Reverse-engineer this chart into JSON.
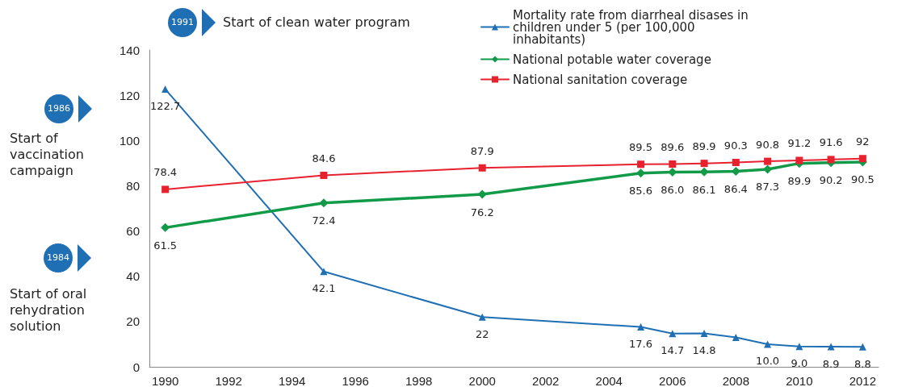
{
  "chart_data": {
    "type": "line",
    "x": [
      1990,
      1995,
      2000,
      2005,
      2006,
      2007,
      2008,
      2009,
      2010,
      2011,
      2012
    ],
    "series": [
      {
        "name": "Mortality rate from diarrheal disases in children under 5 (per 100,000 inhabitants)",
        "color": "#1f6fb5",
        "marker": "triangle",
        "values": [
          122.7,
          42.1,
          22,
          17.6,
          14.7,
          14.8,
          13,
          10.0,
          9.0,
          8.9,
          8.8
        ],
        "value_labels": [
          "122.7",
          "42.1",
          "22",
          "17.6",
          "14.7",
          "14.8",
          null,
          "10.0",
          "9.0",
          "8.9",
          "8.8"
        ]
      },
      {
        "name": "National potable water coverage",
        "color": "#119a48",
        "marker": "diamond",
        "values": [
          61.5,
          72.4,
          76.2,
          85.6,
          86.0,
          86.1,
          86.4,
          87.3,
          89.9,
          90.2,
          90.5
        ],
        "value_labels": [
          "61.5",
          "72.4",
          "76.2",
          "85.6",
          "86.0",
          "86.1",
          "86.4",
          "87.3",
          "89.9",
          "90.2",
          "90.5"
        ]
      },
      {
        "name": "National sanitation coverage",
        "color": "#e8212f",
        "marker": "square",
        "values": [
          78.4,
          84.6,
          87.9,
          89.5,
          89.6,
          89.9,
          90.3,
          90.8,
          91.2,
          91.6,
          92
        ],
        "value_labels": [
          "78.4",
          "84.6",
          "87.9",
          "89.5",
          "89.6",
          "89.9",
          "90.3",
          "90.8",
          "91.2",
          "91.6",
          "92"
        ]
      }
    ],
    "xlim": [
      1989.5,
      2012.5
    ],
    "xticks": [
      1990,
      1992,
      1994,
      1996,
      1998,
      2000,
      2002,
      2004,
      2006,
      2008,
      2010,
      2012
    ],
    "ylim": [
      0,
      140
    ],
    "yticks": [
      0,
      20,
      40,
      60,
      80,
      100,
      120,
      140
    ],
    "grid": false,
    "legend": "top right",
    "line_style": "solid",
    "annotations": [
      "1991",
      "Start of clean water program",
      "1986",
      "Start of vaccination campaign",
      "1984",
      "Start of oral rehydration solution"
    ]
  }
}
